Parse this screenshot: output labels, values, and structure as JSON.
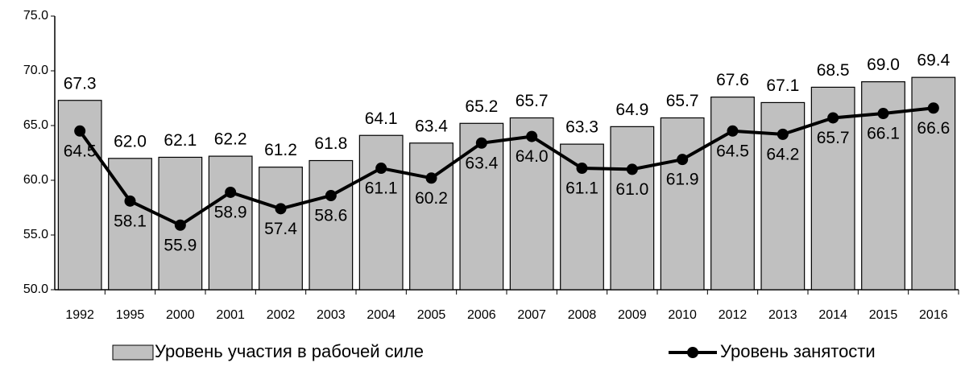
{
  "chart_data": {
    "type": "bar",
    "categories": [
      "1992",
      "1995",
      "2000",
      "2001",
      "2002",
      "2003",
      "2004",
      "2005",
      "2006",
      "2007",
      "2008",
      "2009",
      "2010",
      "2012",
      "2013",
      "2014",
      "2015",
      "2016"
    ],
    "series": [
      {
        "name": "Уровень участия в рабочей силе",
        "type": "bar",
        "color": "#c0c0c0",
        "values": [
          67.3,
          62.0,
          62.1,
          62.2,
          61.2,
          61.8,
          64.1,
          63.4,
          65.2,
          65.7,
          63.3,
          64.9,
          65.7,
          67.6,
          67.1,
          68.5,
          69.0,
          69.4
        ],
        "value_labels": [
          "67.3",
          "62.0",
          "62.1",
          "62.2",
          "61.2",
          "61.8",
          "64.1",
          "63.4",
          "65.2",
          "65.7",
          "63.3",
          "64.9",
          "65.7",
          "67.6",
          "67.1",
          "68.5",
          "69.0",
          "69.4"
        ]
      },
      {
        "name": "Уровень занятости",
        "type": "line",
        "color": "#000000",
        "values": [
          64.5,
          58.1,
          55.9,
          58.9,
          57.4,
          58.6,
          61.1,
          60.2,
          63.4,
          64.0,
          61.1,
          61.0,
          61.9,
          64.5,
          64.2,
          65.7,
          66.1,
          66.6
        ],
        "value_labels": [
          "64.5",
          "58.1",
          "55.9",
          "58.9",
          "57.4",
          "58.6",
          "61.1",
          "60.2",
          "63.4",
          "64.0",
          "61.1",
          "61.0",
          "61.9",
          "64.5",
          "64.2",
          "65.7",
          "66.1",
          "66.6"
        ]
      }
    ],
    "ylim": [
      50,
      75
    ],
    "yticks": [
      {
        "value": 50,
        "label": "50.0"
      },
      {
        "value": 55,
        "label": "55.0"
      },
      {
        "value": 60,
        "label": "60.0"
      },
      {
        "value": 65,
        "label": "65.0"
      },
      {
        "value": 70,
        "label": "70.0"
      },
      {
        "value": 75,
        "label": "75.0"
      }
    ],
    "grid": false
  }
}
